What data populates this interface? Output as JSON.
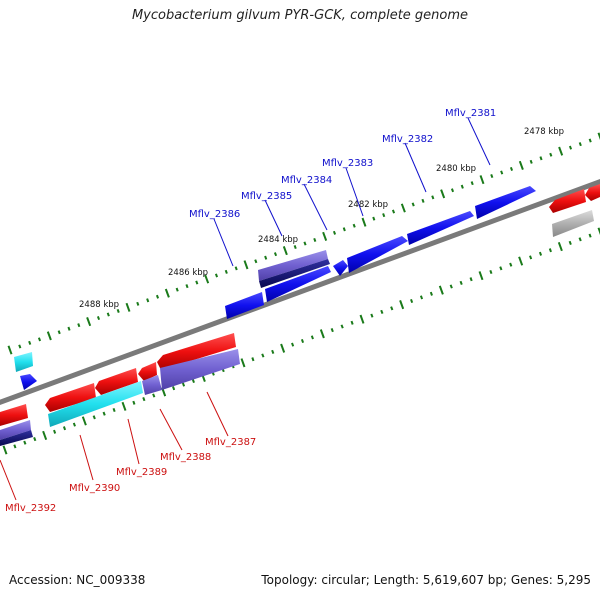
{
  "header": {
    "title": "Mycobacterium gilvum PYR-GCK, complete genome"
  },
  "footer": {
    "accession": "Accession: NC_009338",
    "summary": "Topology: circular; Length: 5,619,607 bp; Genes: 5,295"
  },
  "map": {
    "tick_labels": [
      "2478 kbp",
      "2480 kbp",
      "2482 kbp",
      "2484 kbp",
      "2486 kbp",
      "2488 kbp"
    ],
    "forward_gene_labels": [
      "Mflv_2381",
      "Mflv_2382",
      "Mflv_2383",
      "Mflv_2384",
      "Mflv_2385",
      "Mflv_2386"
    ],
    "reverse_gene_labels": [
      "Mflv_2387",
      "Mflv_2388",
      "Mflv_2389",
      "Mflv_2390",
      "Mflv_2392"
    ]
  },
  "colors": {
    "forward_cds": "#1010ee",
    "reverse_cds": "#ee1010",
    "rna": "#22e0ee",
    "cog_purple": "#7060d0",
    "cog_navy": "#101070",
    "pseudo_gray": "#b0b0b0",
    "backbone": "#7a7a7a",
    "ticks": "#1a7a1a",
    "forward_label": "#1010cc",
    "reverse_label": "#cc1010"
  }
}
